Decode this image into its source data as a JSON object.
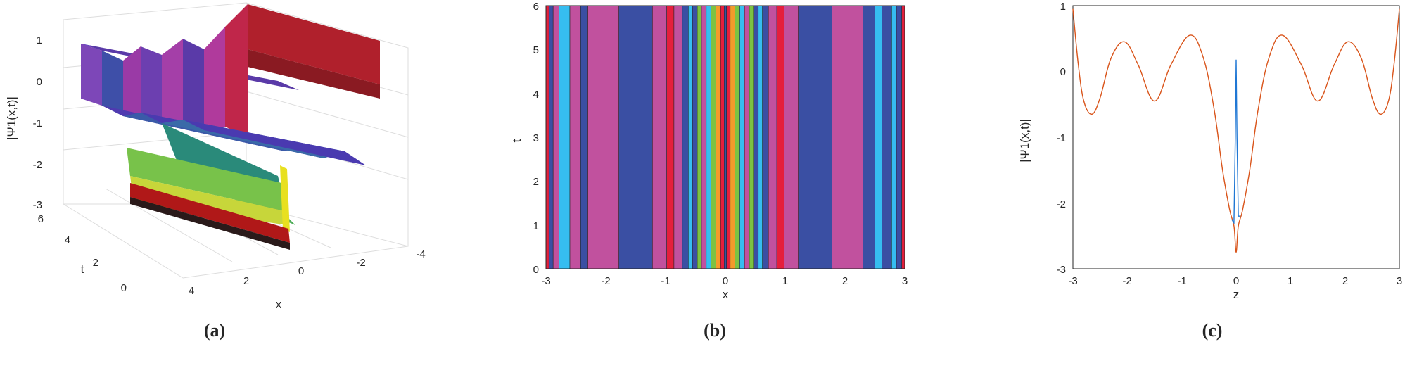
{
  "panels": {
    "a": "(a)",
    "b": "(b)",
    "c": "(c)"
  },
  "chart_data": [
    {
      "type": "surface",
      "panel": "(a)",
      "xlabel": "x",
      "ylabel": "t",
      "zlabel": "|Ψ1(x,t)|",
      "xlim": [
        -4,
        4
      ],
      "ylim": [
        0,
        6
      ],
      "zlim": [
        -3,
        1
      ],
      "x_ticks": [
        4,
        2,
        0,
        -2,
        -4
      ],
      "y_ticks": [
        0,
        2,
        4,
        6
      ],
      "z_ticks": [
        1,
        0,
        -1,
        -2,
        -3
      ],
      "grid": true,
      "colormap": [
        "#3a1a8c",
        "#5b3fb0",
        "#9c3fb0",
        "#c04f9a",
        "#2a8a7a",
        "#4fae5a",
        "#c7d63a",
        "#e8e020",
        "#b01818"
      ]
    },
    {
      "type": "heatmap",
      "panel": "(b)",
      "xlabel": "x",
      "ylabel": "t",
      "xlim": [
        -3,
        3
      ],
      "ylim": [
        0,
        6
      ],
      "x_ticks": [
        -3,
        -2,
        -1,
        0,
        1,
        2,
        3
      ],
      "y_ticks": [
        0,
        1,
        2,
        3,
        4,
        5,
        6
      ],
      "bands": [
        {
          "x0": -3.0,
          "x1": -2.95,
          "color": "#e51f3c"
        },
        {
          "x0": -2.95,
          "x1": -2.88,
          "color": "#3a4fa3"
        },
        {
          "x0": -2.88,
          "x1": -2.78,
          "color": "#c1519e"
        },
        {
          "x0": -2.78,
          "x1": -2.6,
          "color": "#36bdf0"
        },
        {
          "x0": -2.6,
          "x1": -2.42,
          "color": "#c1519e"
        },
        {
          "x0": -2.42,
          "x1": -2.3,
          "color": "#3a4fa3"
        },
        {
          "x0": -2.3,
          "x1": -1.78,
          "color": "#c1519e"
        },
        {
          "x0": -1.78,
          "x1": -1.22,
          "color": "#3a4fa3"
        },
        {
          "x0": -1.22,
          "x1": -0.98,
          "color": "#c1519e"
        },
        {
          "x0": -0.98,
          "x1": -0.86,
          "color": "#e51f3c"
        },
        {
          "x0": -0.86,
          "x1": -0.72,
          "color": "#c1519e"
        },
        {
          "x0": -0.72,
          "x1": -0.62,
          "color": "#3a4fa3"
        },
        {
          "x0": -0.62,
          "x1": -0.55,
          "color": "#36bdf0"
        },
        {
          "x0": -0.55,
          "x1": -0.47,
          "color": "#3a4fa3"
        },
        {
          "x0": -0.47,
          "x1": -0.4,
          "color": "#7cc242"
        },
        {
          "x0": -0.4,
          "x1": -0.32,
          "color": "#c1519e"
        },
        {
          "x0": -0.32,
          "x1": -0.24,
          "color": "#36bdf0"
        },
        {
          "x0": -0.24,
          "x1": -0.16,
          "color": "#7cc242"
        },
        {
          "x0": -0.16,
          "x1": -0.08,
          "color": "#f39a2b"
        },
        {
          "x0": -0.08,
          "x1": -0.02,
          "color": "#e51f3c"
        },
        {
          "x0": -0.02,
          "x1": 0.02,
          "color": "#3a4fa3"
        },
        {
          "x0": 0.02,
          "x1": 0.08,
          "color": "#e51f3c"
        },
        {
          "x0": 0.08,
          "x1": 0.16,
          "color": "#f39a2b"
        },
        {
          "x0": 0.16,
          "x1": 0.24,
          "color": "#7cc242"
        },
        {
          "x0": 0.24,
          "x1": 0.32,
          "color": "#36bdf0"
        },
        {
          "x0": 0.32,
          "x1": 0.4,
          "color": "#c1519e"
        },
        {
          "x0": 0.4,
          "x1": 0.47,
          "color": "#7cc242"
        },
        {
          "x0": 0.47,
          "x1": 0.55,
          "color": "#3a4fa3"
        },
        {
          "x0": 0.55,
          "x1": 0.62,
          "color": "#36bdf0"
        },
        {
          "x0": 0.62,
          "x1": 0.72,
          "color": "#3a4fa3"
        },
        {
          "x0": 0.72,
          "x1": 0.86,
          "color": "#c1519e"
        },
        {
          "x0": 0.86,
          "x1": 0.98,
          "color": "#e51f3c"
        },
        {
          "x0": 0.98,
          "x1": 1.22,
          "color": "#c1519e"
        },
        {
          "x0": 1.22,
          "x1": 1.78,
          "color": "#3a4fa3"
        },
        {
          "x0": 1.78,
          "x1": 2.3,
          "color": "#c1519e"
        },
        {
          "x0": 2.3,
          "x1": 2.5,
          "color": "#3a4fa3"
        },
        {
          "x0": 2.5,
          "x1": 2.62,
          "color": "#36bdf0"
        },
        {
          "x0": 2.62,
          "x1": 2.78,
          "color": "#3a4fa3"
        },
        {
          "x0": 2.78,
          "x1": 2.86,
          "color": "#36bdf0"
        },
        {
          "x0": 2.86,
          "x1": 2.95,
          "color": "#3a4fa3"
        },
        {
          "x0": 2.95,
          "x1": 3.0,
          "color": "#e51f3c"
        }
      ]
    },
    {
      "type": "line",
      "panel": "(c)",
      "xlabel": "z",
      "ylabel": "|Ψ1(x,t)|",
      "xlim": [
        -3,
        3
      ],
      "ylim": [
        -3,
        1
      ],
      "x_ticks": [
        -3,
        -2,
        -1,
        0,
        1,
        2,
        3
      ],
      "y_ticks": [
        1,
        0,
        -1,
        -2,
        -3
      ],
      "series": [
        {
          "color": "#d9541a",
          "x": [
            -3.0,
            -2.9,
            -2.8,
            -2.65,
            -2.5,
            -2.3,
            -2.05,
            -1.8,
            -1.5,
            -1.2,
            -0.85,
            -0.6,
            -0.4,
            -0.25,
            -0.12,
            -0.04,
            0.0,
            0.04,
            0.12,
            0.25,
            0.4,
            0.6,
            0.85,
            1.2,
            1.5,
            1.8,
            2.05,
            2.3,
            2.5,
            2.65,
            2.8,
            2.9,
            3.0
          ],
          "y": [
            0.95,
            0.1,
            -0.45,
            -0.65,
            -0.4,
            0.2,
            0.45,
            0.1,
            -0.45,
            0.1,
            0.55,
            0.2,
            -0.6,
            -1.5,
            -2.1,
            -2.35,
            -2.75,
            -2.35,
            -2.1,
            -1.5,
            -0.6,
            0.2,
            0.55,
            0.1,
            -0.45,
            0.1,
            0.45,
            0.2,
            -0.4,
            -0.65,
            -0.45,
            0.1,
            0.95
          ]
        },
        {
          "color": "#1f77d4",
          "x": [
            -0.08,
            -0.04,
            -0.015,
            0.0,
            0.015,
            0.04,
            0.08
          ],
          "y": [
            -2.25,
            -2.3,
            -1.0,
            0.18,
            -1.0,
            -2.2,
            -2.2
          ]
        }
      ]
    }
  ]
}
